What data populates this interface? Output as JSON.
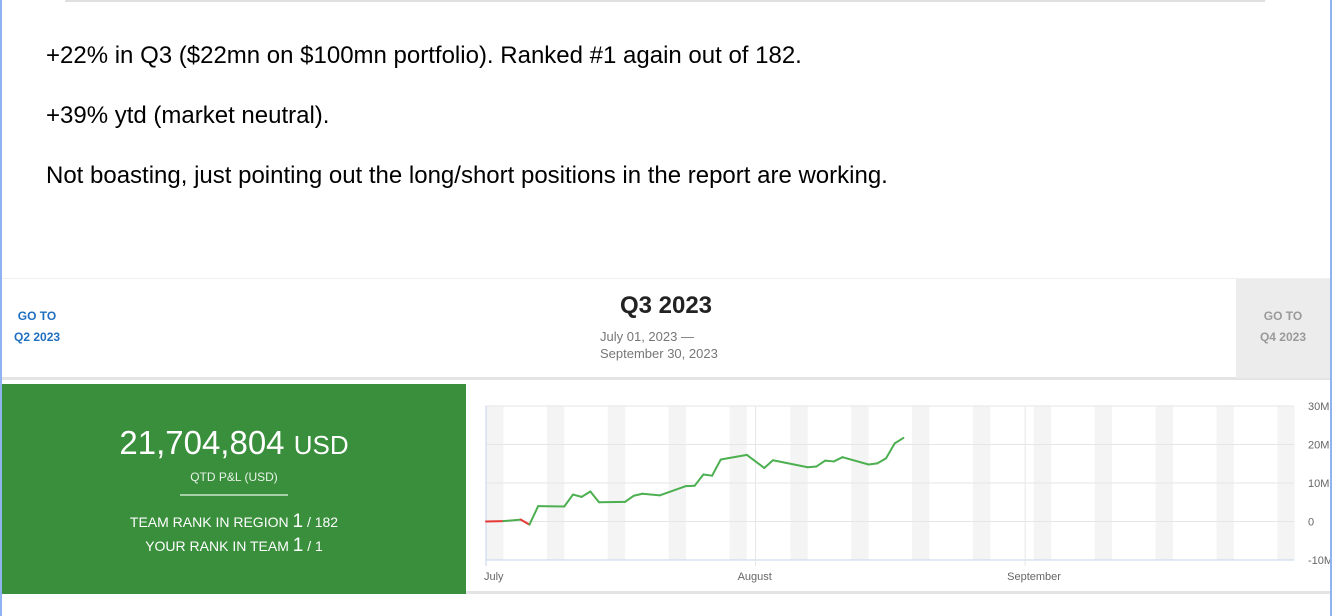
{
  "post": {
    "lines": [
      "+22% in Q3 ($22mn on $100mn portfolio). Ranked #1 again out of 182.",
      "+39% ytd (market neutral).",
      "Not boasting, just pointing out the long/short positions in the report are working."
    ]
  },
  "header": {
    "prev": {
      "line1": "GO TO",
      "line2": "Q2 2023"
    },
    "title": "Q3 2023",
    "date_start": "July 01, 2023 —",
    "date_end": "September 30, 2023",
    "next": {
      "line1": "GO TO",
      "line2": "Q4 2023"
    }
  },
  "summary": {
    "pnl_value": "21,704,804",
    "pnl_unit": "USD",
    "pnl_label": "QTD P&L (USD)",
    "team_rank_label": "TEAM RANK IN REGION",
    "team_rank": "1",
    "team_rank_total": "/ 182",
    "your_rank_label": "YOUR RANK IN TEAM",
    "your_rank": "1",
    "your_rank_total": "/ 1",
    "color": "#3a8f3d"
  },
  "chart_data": {
    "type": "line",
    "x_axis": "date",
    "x_range": [
      "2023-07-01",
      "2023-09-30"
    ],
    "x_ticks": [
      "July",
      "August",
      "September"
    ],
    "y_ticks": [
      "30M",
      "20M",
      "10M",
      "0",
      "-10M"
    ],
    "ylim": [
      -10,
      30
    ],
    "y_unit": "M USD",
    "weekend_shading": true,
    "colors": {
      "positive": "#4caf50",
      "negative": "#e53935"
    },
    "points": [
      [
        "2023-07-01",
        0
      ],
      [
        "2023-07-03",
        0.1
      ],
      [
        "2023-07-05",
        0.5
      ],
      [
        "2023-07-06",
        -0.8
      ],
      [
        "2023-07-07",
        4.0
      ],
      [
        "2023-07-10",
        3.9
      ],
      [
        "2023-07-11",
        7.0
      ],
      [
        "2023-07-12",
        6.4
      ],
      [
        "2023-07-13",
        7.8
      ],
      [
        "2023-07-14",
        5.0
      ],
      [
        "2023-07-17",
        5.1
      ],
      [
        "2023-07-18",
        6.7
      ],
      [
        "2023-07-19",
        7.2
      ],
      [
        "2023-07-21",
        6.8
      ],
      [
        "2023-07-24",
        9.2
      ],
      [
        "2023-07-25",
        9.3
      ],
      [
        "2023-07-26",
        12.2
      ],
      [
        "2023-07-27",
        11.9
      ],
      [
        "2023-07-28",
        16.1
      ],
      [
        "2023-07-31",
        17.3
      ],
      [
        "2023-08-02",
        13.9
      ],
      [
        "2023-08-03",
        15.9
      ],
      [
        "2023-08-07",
        14.1
      ],
      [
        "2023-08-08",
        14.3
      ],
      [
        "2023-08-09",
        15.8
      ],
      [
        "2023-08-10",
        15.6
      ],
      [
        "2023-08-11",
        16.7
      ],
      [
        "2023-08-14",
        14.8
      ],
      [
        "2023-08-15",
        15.1
      ],
      [
        "2023-08-16",
        16.4
      ],
      [
        "2023-08-17",
        20.3
      ],
      [
        "2023-08-18",
        21.7
      ]
    ]
  }
}
